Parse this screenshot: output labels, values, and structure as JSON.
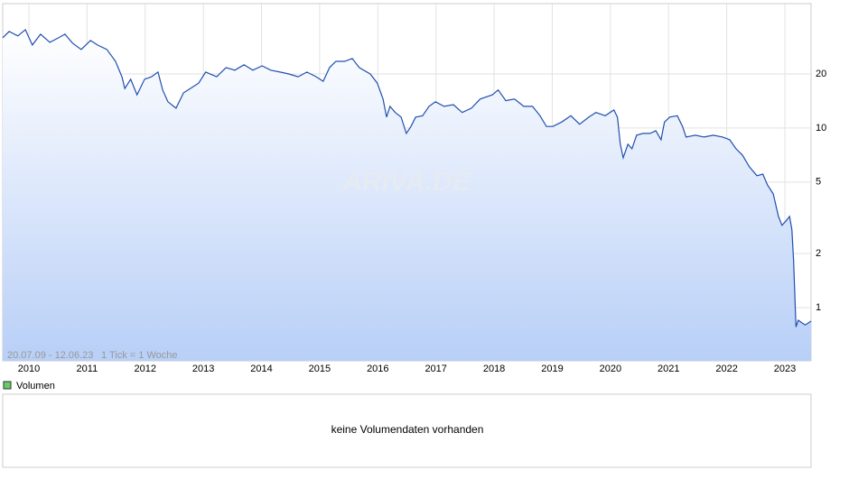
{
  "chart_data": {
    "type": "line",
    "log_scale": true,
    "grid": true,
    "color": "#1f4fb0",
    "range_label": "20.07.09 - 12.06.23",
    "tick_label": "1 Tick = 1 Woche",
    "watermark": "ARIVA.DE",
    "xlim": [
      2009.55,
      2023.45
    ],
    "xticks": [
      2010,
      2011,
      2012,
      2013,
      2014,
      2015,
      2016,
      2017,
      2018,
      2019,
      2020,
      2021,
      2022,
      2023
    ],
    "ylim": [
      0.505,
      49.3
    ],
    "yticks": [
      1,
      2,
      5,
      10,
      20
    ],
    "x": [
      2009.55,
      2009.66,
      2009.81,
      2009.94,
      2010.06,
      2010.2,
      2010.36,
      2010.51,
      2010.62,
      2010.75,
      2010.9,
      2011.06,
      2011.18,
      2011.34,
      2011.49,
      2011.6,
      2011.65,
      2011.75,
      2011.86,
      2011.99,
      2012.11,
      2012.22,
      2012.3,
      2012.39,
      2012.53,
      2012.66,
      2012.8,
      2012.92,
      2013.04,
      2013.23,
      2013.39,
      2013.54,
      2013.7,
      2013.85,
      2014.01,
      2014.16,
      2014.32,
      2014.47,
      2014.63,
      2014.78,
      2014.94,
      2015.06,
      2015.17,
      2015.28,
      2015.43,
      2015.56,
      2015.68,
      2015.87,
      2015.99,
      2016.09,
      2016.15,
      2016.21,
      2016.3,
      2016.4,
      2016.49,
      2016.57,
      2016.65,
      2016.77,
      2016.88,
      2016.99,
      2017.14,
      2017.3,
      2017.45,
      2017.61,
      2017.76,
      2017.97,
      2018.07,
      2018.2,
      2018.35,
      2018.51,
      2018.66,
      2018.79,
      2018.9,
      2019.01,
      2019.16,
      2019.32,
      2019.47,
      2019.63,
      2019.75,
      2019.91,
      2020.06,
      2020.12,
      2020.17,
      2020.22,
      2020.3,
      2020.37,
      2020.45,
      2020.56,
      2020.68,
      2020.78,
      2020.87,
      2020.93,
      2021.02,
      2021.15,
      2021.24,
      2021.3,
      2021.46,
      2021.61,
      2021.77,
      2021.93,
      2022.05,
      2022.16,
      2022.27,
      2022.39,
      2022.52,
      2022.62,
      2022.7,
      2022.8,
      2022.89,
      2022.95,
      2023.02,
      2023.08,
      2023.12,
      2023.15,
      2023.19,
      2023.23,
      2023.3,
      2023.35,
      2023.45
    ],
    "values": [
      31.8,
      34.5,
      32.6,
      35.3,
      29.0,
      33.3,
      30.0,
      31.8,
      33.3,
      29.7,
      27.4,
      30.7,
      29.0,
      27.4,
      23.5,
      19.3,
      16.6,
      18.7,
      15.3,
      18.7,
      19.3,
      20.5,
      16.3,
      14.0,
      12.9,
      15.7,
      16.8,
      17.8,
      20.5,
      19.3,
      21.7,
      21.0,
      22.5,
      21.0,
      22.2,
      21.0,
      20.5,
      20.0,
      19.3,
      20.5,
      19.3,
      18.2,
      21.7,
      23.5,
      23.5,
      24.4,
      21.7,
      20.0,
      17.8,
      14.5,
      11.5,
      13.2,
      12.2,
      11.5,
      9.33,
      10.2,
      11.5,
      11.7,
      13.2,
      14.0,
      13.2,
      13.5,
      12.2,
      12.9,
      14.5,
      15.3,
      16.3,
      14.2,
      14.5,
      13.2,
      13.2,
      11.7,
      10.2,
      10.2,
      10.8,
      11.7,
      10.5,
      11.5,
      12.2,
      11.7,
      12.6,
      11.5,
      8.12,
      6.83,
      8.12,
      7.66,
      9.12,
      9.33,
      9.33,
      9.66,
      8.6,
      10.8,
      11.5,
      11.7,
      10.2,
      8.91,
      9.12,
      8.91,
      9.12,
      8.91,
      8.6,
      7.66,
      7.07,
      6.08,
      5.42,
      5.54,
      4.82,
      4.3,
      3.22,
      2.87,
      3.04,
      3.22,
      2.71,
      1.8,
      0.78,
      0.85,
      0.82,
      0.8,
      0.84
    ]
  },
  "volume_panel": {
    "legend": "Volumen",
    "legend_color": "#66cc66",
    "message": "keine Volumendaten vorhanden"
  }
}
